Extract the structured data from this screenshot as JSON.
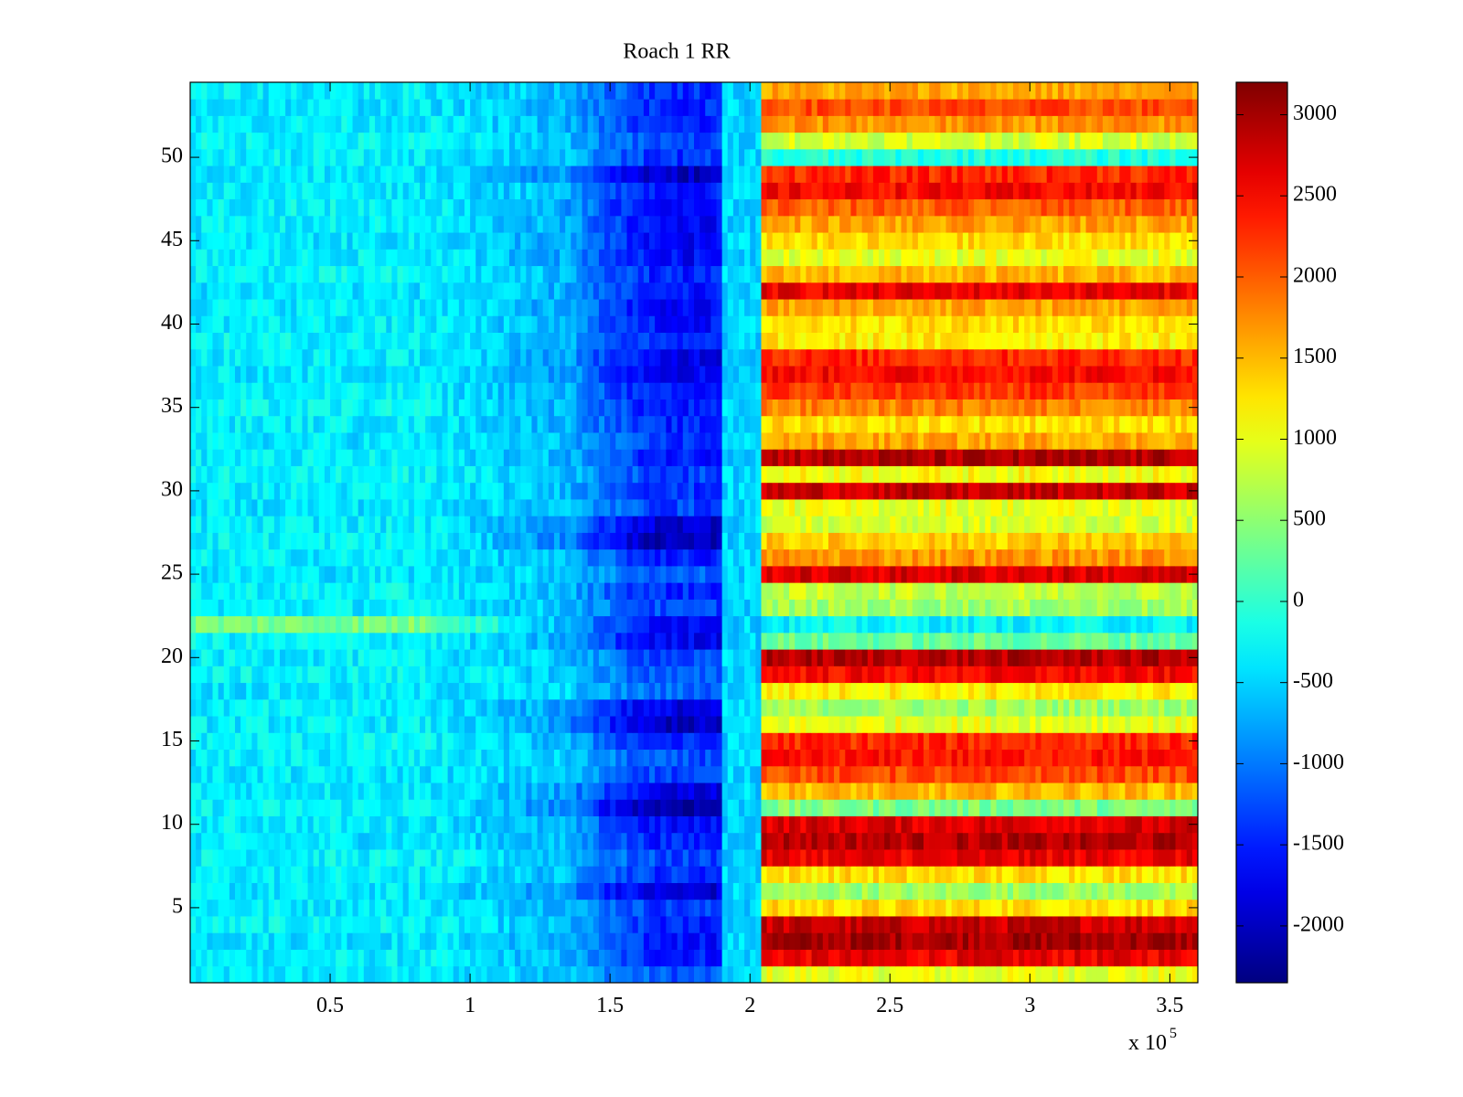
{
  "chart_data": {
    "type": "heatmap",
    "title": "Roach 1 RR",
    "xlabel": "",
    "ylabel": "",
    "x_exponent_label": "x 10",
    "x_exponent_power": "5",
    "xlim": [
      0,
      3.6
    ],
    "ylim": [
      0.5,
      54.5
    ],
    "x_ticks": [
      0.5,
      1,
      1.5,
      2,
      2.5,
      3,
      3.5
    ],
    "x_tick_labels": [
      "0.5",
      "1",
      "1.5",
      "2",
      "2.5",
      "3",
      "3.5"
    ],
    "y_ticks": [
      5,
      10,
      15,
      20,
      25,
      30,
      35,
      40,
      45,
      50
    ],
    "y_tick_labels": [
      "5",
      "10",
      "15",
      "20",
      "25",
      "30",
      "35",
      "40",
      "45",
      "50"
    ],
    "rows": 54,
    "colormap": "jet",
    "clim": [
      -2350,
      3200
    ],
    "colorbar_ticks": [
      3000,
      2500,
      2000,
      1500,
      1000,
      500,
      0,
      -500,
      -1000,
      -1500,
      -2000
    ],
    "colorbar_tick_labels": [
      "3000",
      "2500",
      "2000",
      "1500",
      "1000",
      "500",
      "0",
      "-500",
      "-1000",
      "-1500",
      "-2000"
    ],
    "regions_x_units": [
      {
        "x_range": [
          0.0,
          0.85
        ],
        "value_approx": -350
      },
      {
        "x_range": [
          0.85,
          1.35
        ],
        "value_approx": -650
      },
      {
        "x_range": [
          1.35,
          1.9
        ],
        "value_approx": -1500
      },
      {
        "x_range": [
          1.9,
          2.05
        ],
        "value_approx": -500
      },
      {
        "x_range": [
          2.05,
          3.6
        ],
        "value_approx": "row-dependent 0 to 3000"
      }
    ],
    "right_region_row_values": [
      1000,
      2600,
      3000,
      2800,
      1300,
      600,
      1300,
      2600,
      2900,
      2700,
      400,
      1500,
      2100,
      2400,
      2300,
      1000,
      600,
      1200,
      2500,
      2900,
      300,
      -300,
      600,
      800,
      2700,
      1700,
      1400,
      900,
      1000,
      2800,
      1100,
      2900,
      1600,
      1300,
      1800,
      2200,
      2500,
      2300,
      1200,
      1300,
      1600,
      2600,
      1500,
      1000,
      1300,
      1600,
      2000,
      2500,
      2300,
      -100,
      900,
      1700,
      2100,
      1600
    ],
    "middle_region_row_values": [
      -1200,
      -1500,
      -1550,
      -1500,
      -1350,
      -1900,
      -1400,
      -1300,
      -1500,
      -1650,
      -2100,
      -1800,
      -1300,
      -1250,
      -1500,
      -2000,
      -1800,
      -1100,
      -1200,
      -1300,
      -1700,
      -1600,
      -1300,
      -1450,
      -1150,
      -1500,
      -2100,
      -1900,
      -1300,
      -1400,
      -1300,
      -1500,
      -1400,
      -1500,
      -1550,
      -1600,
      -1700,
      -1750,
      -1500,
      -1600,
      -1700,
      -1600,
      -1500,
      -1650,
      -1700,
      -1650,
      -1700,
      -1500,
      -2000,
      -1400,
      -1300,
      -1500,
      -1450,
      -1400
    ],
    "left_region_row_values": [
      -400,
      -350,
      -400,
      -300,
      -350,
      -400,
      -350,
      -300,
      -400,
      -350,
      -300,
      -350,
      -400,
      -350,
      -300,
      -350,
      -350,
      -400,
      -300,
      -350,
      -300,
      400,
      -350,
      -300,
      -400,
      -350,
      -300,
      -350,
      -400,
      -350,
      -300,
      -350,
      -400,
      -350,
      -300,
      -350,
      -400,
      -350,
      -300,
      -350,
      -350,
      -400,
      -300,
      -350,
      -400,
      -350,
      -300,
      -350,
      -400,
      -350,
      -300,
      -350,
      -400,
      -350
    ]
  }
}
